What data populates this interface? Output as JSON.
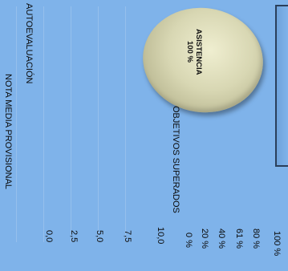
{
  "chart_data": [
    {
      "type": "bar",
      "orientation": "rotated 90 degrees clockwise",
      "title": "ASISTENCIA",
      "ylabel": "",
      "yticks": [
        "100 %",
        "80 %",
        "61 %",
        "40 %",
        "20 %",
        "0 %"
      ],
      "ylim": [
        0,
        100
      ],
      "categories": [
        "ASISTENCIA"
      ],
      "values": [
        100
      ],
      "value_label": "100 %"
    },
    {
      "type": "bar",
      "title": "OBJETIVOS SUPERADOS",
      "categories": [
        "AUTOEVALUACIÓN",
        "NOTA MEDIA PROVISIONAL"
      ],
      "yticks": [
        "10,0",
        "7,5",
        "5,0",
        "2,5",
        "0,0"
      ],
      "ylim": [
        0,
        10
      ]
    }
  ],
  "labels": {
    "autoevaluacion": "AUTOEVALUACIÓN",
    "nota_media": "NOTA MEDIA PROVISIONAL",
    "objetivos": "OBJETIVOS SUPERADOS"
  },
  "badge": {
    "line1": "ASISTENCIA",
    "line2": "100 %"
  },
  "colors": {
    "background": "#7fb3ea",
    "badge": "#d8d7b3",
    "text": "#0a0a0a"
  }
}
